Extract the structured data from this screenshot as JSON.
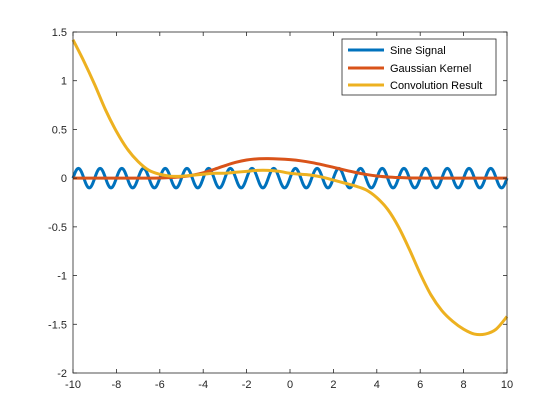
{
  "chart_data": {
    "type": "line",
    "title": "",
    "xlabel": "",
    "ylabel": "",
    "xlim": [
      -10,
      10
    ],
    "ylim": [
      -2,
      1.5
    ],
    "x_ticks": [
      -10,
      -8,
      -6,
      -4,
      -2,
      0,
      2,
      4,
      6,
      8,
      10
    ],
    "y_ticks": [
      -2,
      -1.5,
      -1,
      -0.5,
      0,
      0.5,
      1,
      1.5
    ],
    "x_tick_labels": [
      "-10",
      "-8",
      "-6",
      "-4",
      "-2",
      "0",
      "2",
      "4",
      "6",
      "8",
      "10"
    ],
    "y_tick_labels": [
      "-2",
      "-1.5",
      "-1",
      "-0.5",
      "0",
      "0.5",
      "1",
      "1.5"
    ],
    "grid": false,
    "legend_position": "top-right",
    "x": [
      -10,
      -9.5,
      -9,
      -8.5,
      -8,
      -7.5,
      -7,
      -6.5,
      -6,
      -5.5,
      -5,
      -4.5,
      -4,
      -3.5,
      -3,
      -2.5,
      -2,
      -1.5,
      -1,
      -0.5,
      0,
      0.5,
      1,
      1.5,
      2,
      2.5,
      3,
      3.5,
      4,
      4.5,
      5,
      5.5,
      6,
      6.5,
      7,
      7.5,
      8,
      8.5,
      9,
      9.5,
      10
    ],
    "series": [
      {
        "name": "Sine Signal",
        "color": "#0072bd",
        "kind": "sinusoid",
        "amplitude": 0.1,
        "frequency": 1,
        "phase": 0
      },
      {
        "name": "Gaussian Kernel",
        "color": "#d95319",
        "values": [
          0,
          0,
          0,
          0,
          0,
          0,
          0,
          0,
          0.002,
          0.006,
          0.014,
          0.03,
          0.055,
          0.09,
          0.128,
          0.162,
          0.186,
          0.198,
          0.2,
          0.197,
          0.19,
          0.178,
          0.16,
          0.137,
          0.111,
          0.084,
          0.059,
          0.038,
          0.022,
          0.012,
          0.006,
          0.002,
          0.001,
          0,
          0,
          0,
          0,
          0,
          0,
          0,
          0
        ]
      },
      {
        "name": "Convolution Result",
        "color": "#edb120",
        "values": [
          1.42,
          1.2,
          0.96,
          0.7,
          0.48,
          0.3,
          0.17,
          0.08,
          0.04,
          0.02,
          0.02,
          0.03,
          0.04,
          0.05,
          0.05,
          0.06,
          0.07,
          0.08,
          0.08,
          0.07,
          0.05,
          0.04,
          0.03,
          0.01,
          -0.02,
          -0.05,
          -0.08,
          -0.12,
          -0.2,
          -0.32,
          -0.5,
          -0.73,
          -0.98,
          -1.2,
          -1.36,
          -1.47,
          -1.55,
          -1.6,
          -1.6,
          -1.55,
          -1.42
        ]
      }
    ]
  }
}
